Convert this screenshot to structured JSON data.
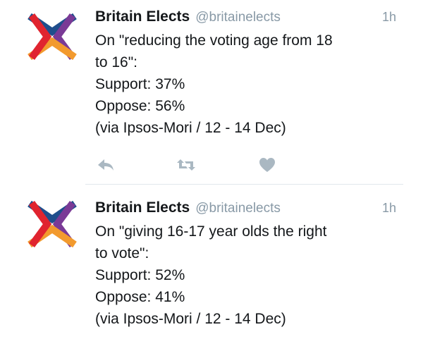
{
  "tweets": [
    {
      "name": "Britain Elects",
      "handle": "@britainelects",
      "time": "1h",
      "lines": [
        "On \"reducing the voting age from 18",
        "to 16\":",
        "Support: 37%",
        "Oppose: 56%",
        "(via Ipsos-Mori / 12 - 14 Dec)"
      ]
    },
    {
      "name": "Britain Elects",
      "handle": "@britainelects",
      "time": "1h",
      "lines": [
        "On \"giving 16-17 year olds the right",
        "to vote\":",
        "Support: 52%",
        "Oppose: 41%",
        "(via Ipsos-Mori / 12 - 14 Dec)"
      ]
    }
  ],
  "icons": {
    "reply": "reply-icon",
    "retweet": "retweet-icon",
    "like": "heart-icon",
    "avatar": "britain-elects-logo"
  },
  "colors": {
    "logo_top": "#1f4e8c",
    "logo_right": "#7a3a96",
    "logo_bottom": "#f29a2e",
    "logo_left": "#e0242f",
    "secondary_text": "#8899a6",
    "action_icon": "#aab8c2"
  }
}
